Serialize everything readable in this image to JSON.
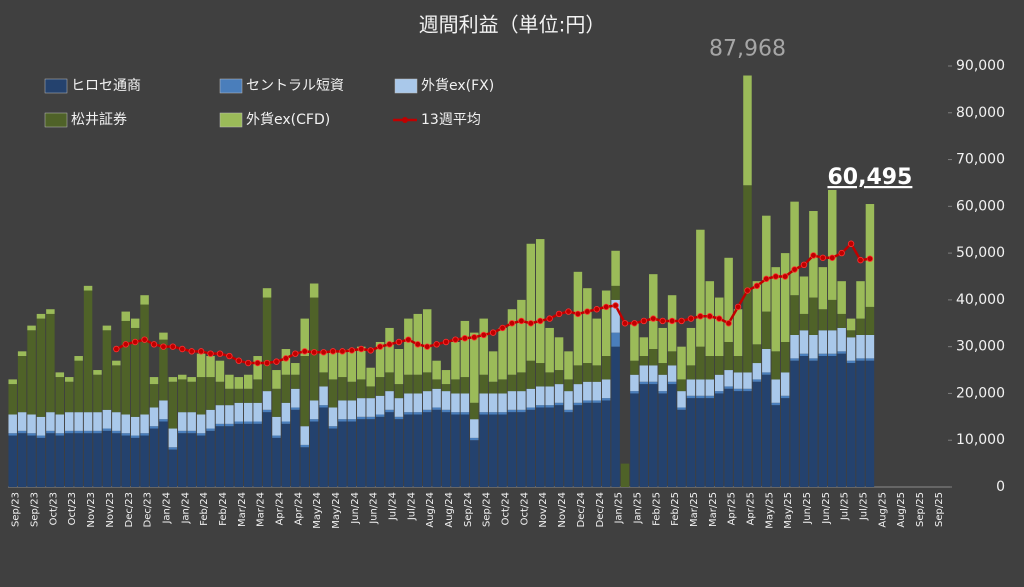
{
  "chart_data": {
    "type": "bar",
    "stacked": true,
    "title": "週間利益（単位:円）",
    "categories": [
      "Sep/23",
      null,
      "Sep/23",
      null,
      "Oct/23",
      null,
      "Oct/23",
      null,
      "Nov/23",
      null,
      "Nov/23",
      null,
      "Dec/23",
      null,
      "Dec/23",
      null,
      "Jan/24",
      null,
      "Jan/24",
      null,
      "Feb/24",
      null,
      "Feb/24",
      null,
      "Mar/24",
      null,
      "Mar/24",
      null,
      "Apr/24",
      null,
      "Apr/24",
      null,
      "May/24",
      null,
      "May/24",
      null,
      "Jun/24",
      null,
      "Jun/24",
      null,
      "Jul/24",
      null,
      "Jul/24",
      null,
      "Aug/24",
      null,
      "Aug/24",
      null,
      "Sep/24",
      null,
      "Sep/24",
      null,
      "Oct/24",
      null,
      "Oct/24",
      null,
      "Nov/24",
      null,
      "Nov/24",
      null,
      "Dec/24",
      null,
      "Dec/24",
      null,
      "Jan/25",
      null,
      "Jan/25",
      null,
      "Feb/25",
      null,
      "Feb/25",
      null,
      "Mar/25",
      null,
      "Mar/25",
      null,
      "Apr/25",
      null,
      "Apr/25",
      null,
      "May/25",
      null,
      "May/25",
      null,
      "Jun/25",
      null,
      "Jun/25",
      null,
      "Jul/25",
      null,
      "Jul/25",
      null,
      "Aug/25",
      null,
      "Aug/25",
      null,
      "Sep/25",
      null,
      "Sep/25",
      null
    ],
    "series": [
      {
        "name": "ヒロセ通商",
        "color": "#24426e",
        "values": [
          11000,
          11500,
          11000,
          10500,
          11500,
          11000,
          11500,
          11500,
          11500,
          11500,
          12000,
          11500,
          11000,
          10500,
          11000,
          12500,
          14000,
          8000,
          11500,
          11500,
          11000,
          12000,
          13000,
          13000,
          13500,
          13500,
          13500,
          16000,
          10500,
          13500,
          16500,
          8500,
          14000,
          17000,
          12500,
          14000,
          14000,
          14500,
          14500,
          15000,
          16000,
          14500,
          15500,
          15500,
          16000,
          16500,
          16000,
          15500,
          15500,
          10000,
          15500,
          15500,
          15500,
          16000,
          16000,
          16500,
          17000,
          17000,
          17500,
          16000,
          17500,
          18000,
          18000,
          18500,
          30000,
          0,
          20000,
          22000,
          22000,
          20000,
          22000,
          16500,
          19000,
          19000,
          19000,
          20000,
          21000,
          20500,
          20500,
          22500,
          24000,
          17500,
          19000,
          27000,
          28000,
          27000,
          28000,
          28000,
          28500,
          26500,
          27000,
          27000,
          null,
          null,
          null,
          null,
          null,
          null,
          null,
          null
        ]
      },
      {
        "name": "セントラル短資",
        "color": "#4a7ebb",
        "values": [
          500,
          500,
          500,
          500,
          500,
          500,
          500,
          500,
          500,
          500,
          500,
          500,
          500,
          500,
          500,
          500,
          500,
          500,
          500,
          500,
          500,
          500,
          500,
          500,
          500,
          500,
          500,
          500,
          500,
          500,
          500,
          500,
          500,
          500,
          500,
          500,
          500,
          500,
          500,
          500,
          500,
          500,
          500,
          500,
          500,
          500,
          500,
          500,
          500,
          500,
          500,
          500,
          500,
          500,
          500,
          500,
          500,
          500,
          500,
          500,
          500,
          500,
          500,
          500,
          3000,
          0,
          500,
          500,
          500,
          500,
          500,
          500,
          500,
          500,
          500,
          500,
          500,
          500,
          500,
          500,
          500,
          500,
          500,
          500,
          500,
          500,
          500,
          500,
          500,
          500,
          500,
          500,
          null,
          null,
          null,
          null,
          null,
          null,
          null,
          null
        ]
      },
      {
        "name": "外貨ex(FX)",
        "color": "#a9c8ea",
        "values": [
          4000,
          4000,
          4000,
          4000,
          4000,
          4000,
          4000,
          4000,
          4000,
          4000,
          4000,
          4000,
          4000,
          4000,
          4000,
          4000,
          4000,
          4000,
          4000,
          4000,
          4000,
          4000,
          4000,
          4000,
          4000,
          4000,
          4000,
          4000,
          4000,
          4000,
          4000,
          4000,
          4000,
          4000,
          4000,
          4000,
          4000,
          4000,
          4000,
          4000,
          4000,
          4000,
          4000,
          4000,
          4000,
          4000,
          4000,
          4000,
          4000,
          4000,
          4000,
          4000,
          4000,
          4000,
          4000,
          4000,
          4000,
          4000,
          4000,
          4000,
          4000,
          4000,
          4000,
          4000,
          7000,
          0,
          3500,
          3500,
          3500,
          3500,
          3500,
          3500,
          3500,
          3500,
          3500,
          3500,
          3500,
          3500,
          3500,
          3500,
          5000,
          5000,
          5000,
          5000,
          5000,
          5000,
          5000,
          5000,
          5000,
          5000,
          5000,
          5000,
          null,
          null,
          null,
          null,
          null,
          null,
          null,
          null
        ]
      },
      {
        "name": "松井証券",
        "color": "#4f6228",
        "values": [
          6500,
          12000,
          18000,
          21000,
          21000,
          8000,
          6500,
          11000,
          26000,
          8000,
          17000,
          10000,
          20000,
          19000,
          23500,
          5000,
          13000,
          10000,
          7000,
          6500,
          8000,
          7000,
          5000,
          3500,
          3000,
          3000,
          5000,
          20000,
          6000,
          6000,
          3000,
          15000,
          22000,
          3000,
          6000,
          5000,
          4000,
          4000,
          2500,
          4000,
          4000,
          3000,
          4000,
          4000,
          4000,
          2000,
          1500,
          3000,
          3500,
          3500,
          4000,
          2500,
          3000,
          3500,
          4000,
          6000,
          5000,
          3000,
          3000,
          2500,
          4000,
          4000,
          3500,
          5000,
          3000,
          5000,
          3000,
          2000,
          3500,
          2500,
          3000,
          2500,
          3000,
          7000,
          5000,
          4000,
          6000,
          3500,
          40000,
          4000,
          8000,
          6000,
          6500,
          8500,
          3500,
          8000,
          4500,
          6500,
          3000,
          1500,
          3500,
          6000,
          null,
          null,
          null,
          null,
          null,
          null,
          null,
          null
        ]
      },
      {
        "name": "外貨ex(CFD)",
        "color": "#9bbb59",
        "values": [
          1000,
          1000,
          1000,
          1000,
          1000,
          1000,
          1000,
          1000,
          1000,
          1000,
          1000,
          1000,
          2000,
          2000,
          2000,
          1500,
          1500,
          1000,
          1000,
          1000,
          5000,
          4500,
          4500,
          3000,
          2500,
          3000,
          5000,
          2000,
          4000,
          5500,
          2500,
          8000,
          3000,
          4500,
          6000,
          5500,
          7000,
          7000,
          4000,
          7500,
          9500,
          7500,
          12000,
          13000,
          13500,
          4000,
          3000,
          8000,
          12000,
          15000,
          12000,
          6500,
          11000,
          14000,
          15500,
          25000,
          26500,
          9500,
          7000,
          6000,
          20000,
          16000,
          10000,
          14000,
          7500,
          0,
          8000,
          4000,
          16000,
          7500,
          12000,
          7000,
          8000,
          25000,
          16000,
          12500,
          18000,
          10000,
          23468,
          13500,
          20500,
          18000,
          19000,
          20000,
          8000,
          18500,
          9000,
          23500,
          7000,
          2500,
          8000,
          21995,
          null,
          null,
          null,
          null,
          null,
          null,
          null,
          null
        ]
      },
      {
        "name": "13週平均",
        "type": "line",
        "color": "#c00000",
        "values": [
          null,
          null,
          null,
          null,
          null,
          null,
          null,
          null,
          null,
          null,
          null,
          29500,
          30500,
          31000,
          31500,
          30500,
          30000,
          30000,
          29500,
          29000,
          29000,
          28500,
          28500,
          28000,
          27000,
          26500,
          26500,
          26500,
          26800,
          27500,
          28500,
          29000,
          28800,
          28800,
          29000,
          29000,
          29200,
          29500,
          29200,
          30000,
          30500,
          31000,
          31500,
          30500,
          30000,
          30500,
          31000,
          31500,
          31800,
          32000,
          32500,
          33000,
          34000,
          35000,
          35500,
          35000,
          35500,
          36000,
          37000,
          37500,
          37000,
          37500,
          38000,
          38500,
          38800,
          35000,
          35000,
          35500,
          36000,
          35500,
          35500,
          35500,
          36000,
          36500,
          36500,
          36000,
          35000,
          38500,
          42000,
          43000,
          44500,
          45000,
          45000,
          46500,
          47500,
          49500,
          49000,
          49000,
          50000,
          52000,
          48500,
          48800,
          null,
          null,
          null,
          null,
          null,
          null,
          null,
          null
        ]
      }
    ],
    "annotations": [
      {
        "label": "87,968",
        "value": 87968,
        "color": "#a6a6a6",
        "underline": false
      },
      {
        "label": "60,495",
        "value": 60495,
        "color": "#ffffff",
        "underline": true
      }
    ],
    "ylim": [
      0,
      90000
    ],
    "yticks": [
      0,
      {
        "value": 10000,
        "label": "10,000"
      },
      {
        "value": 20000,
        "label": "20,000"
      },
      {
        "value": 30000,
        "label": "30,000"
      },
      {
        "value": 40000,
        "label": "40,000"
      },
      {
        "value": 50000,
        "label": "50,000"
      },
      {
        "value": 60000,
        "label": "60,000"
      },
      {
        "value": 70000,
        "label": "70,000"
      },
      {
        "value": 80000,
        "label": "80,000"
      },
      {
        "value": 90000,
        "label": "90,000"
      }
    ],
    "grid": false
  }
}
